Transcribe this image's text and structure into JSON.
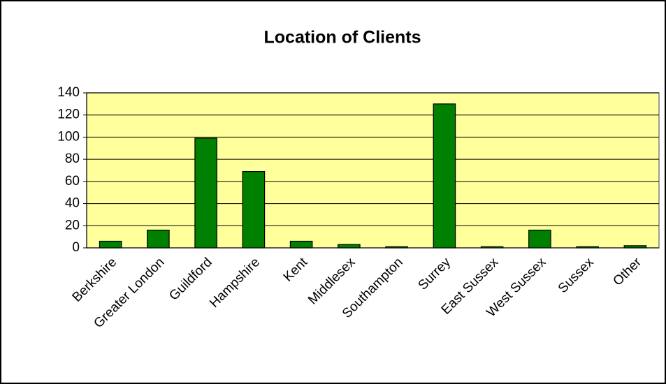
{
  "chart_data": {
    "type": "bar",
    "title": "Location of Clients",
    "categories": [
      "Berkshire",
      "Greater London",
      "Guildford",
      "Hampshire",
      "Kent",
      "Middlesex",
      "Southampton",
      "Surrey",
      "East Sussex",
      "West Sussex",
      "Sussex",
      "Other"
    ],
    "values": [
      6,
      16,
      99,
      69,
      6,
      3,
      1,
      130,
      1,
      16,
      1,
      2
    ],
    "color": "#008000",
    "ylim": [
      0,
      140
    ],
    "yticks": [
      0,
      20,
      40,
      60,
      80,
      100,
      120,
      140
    ],
    "grid": true
  }
}
